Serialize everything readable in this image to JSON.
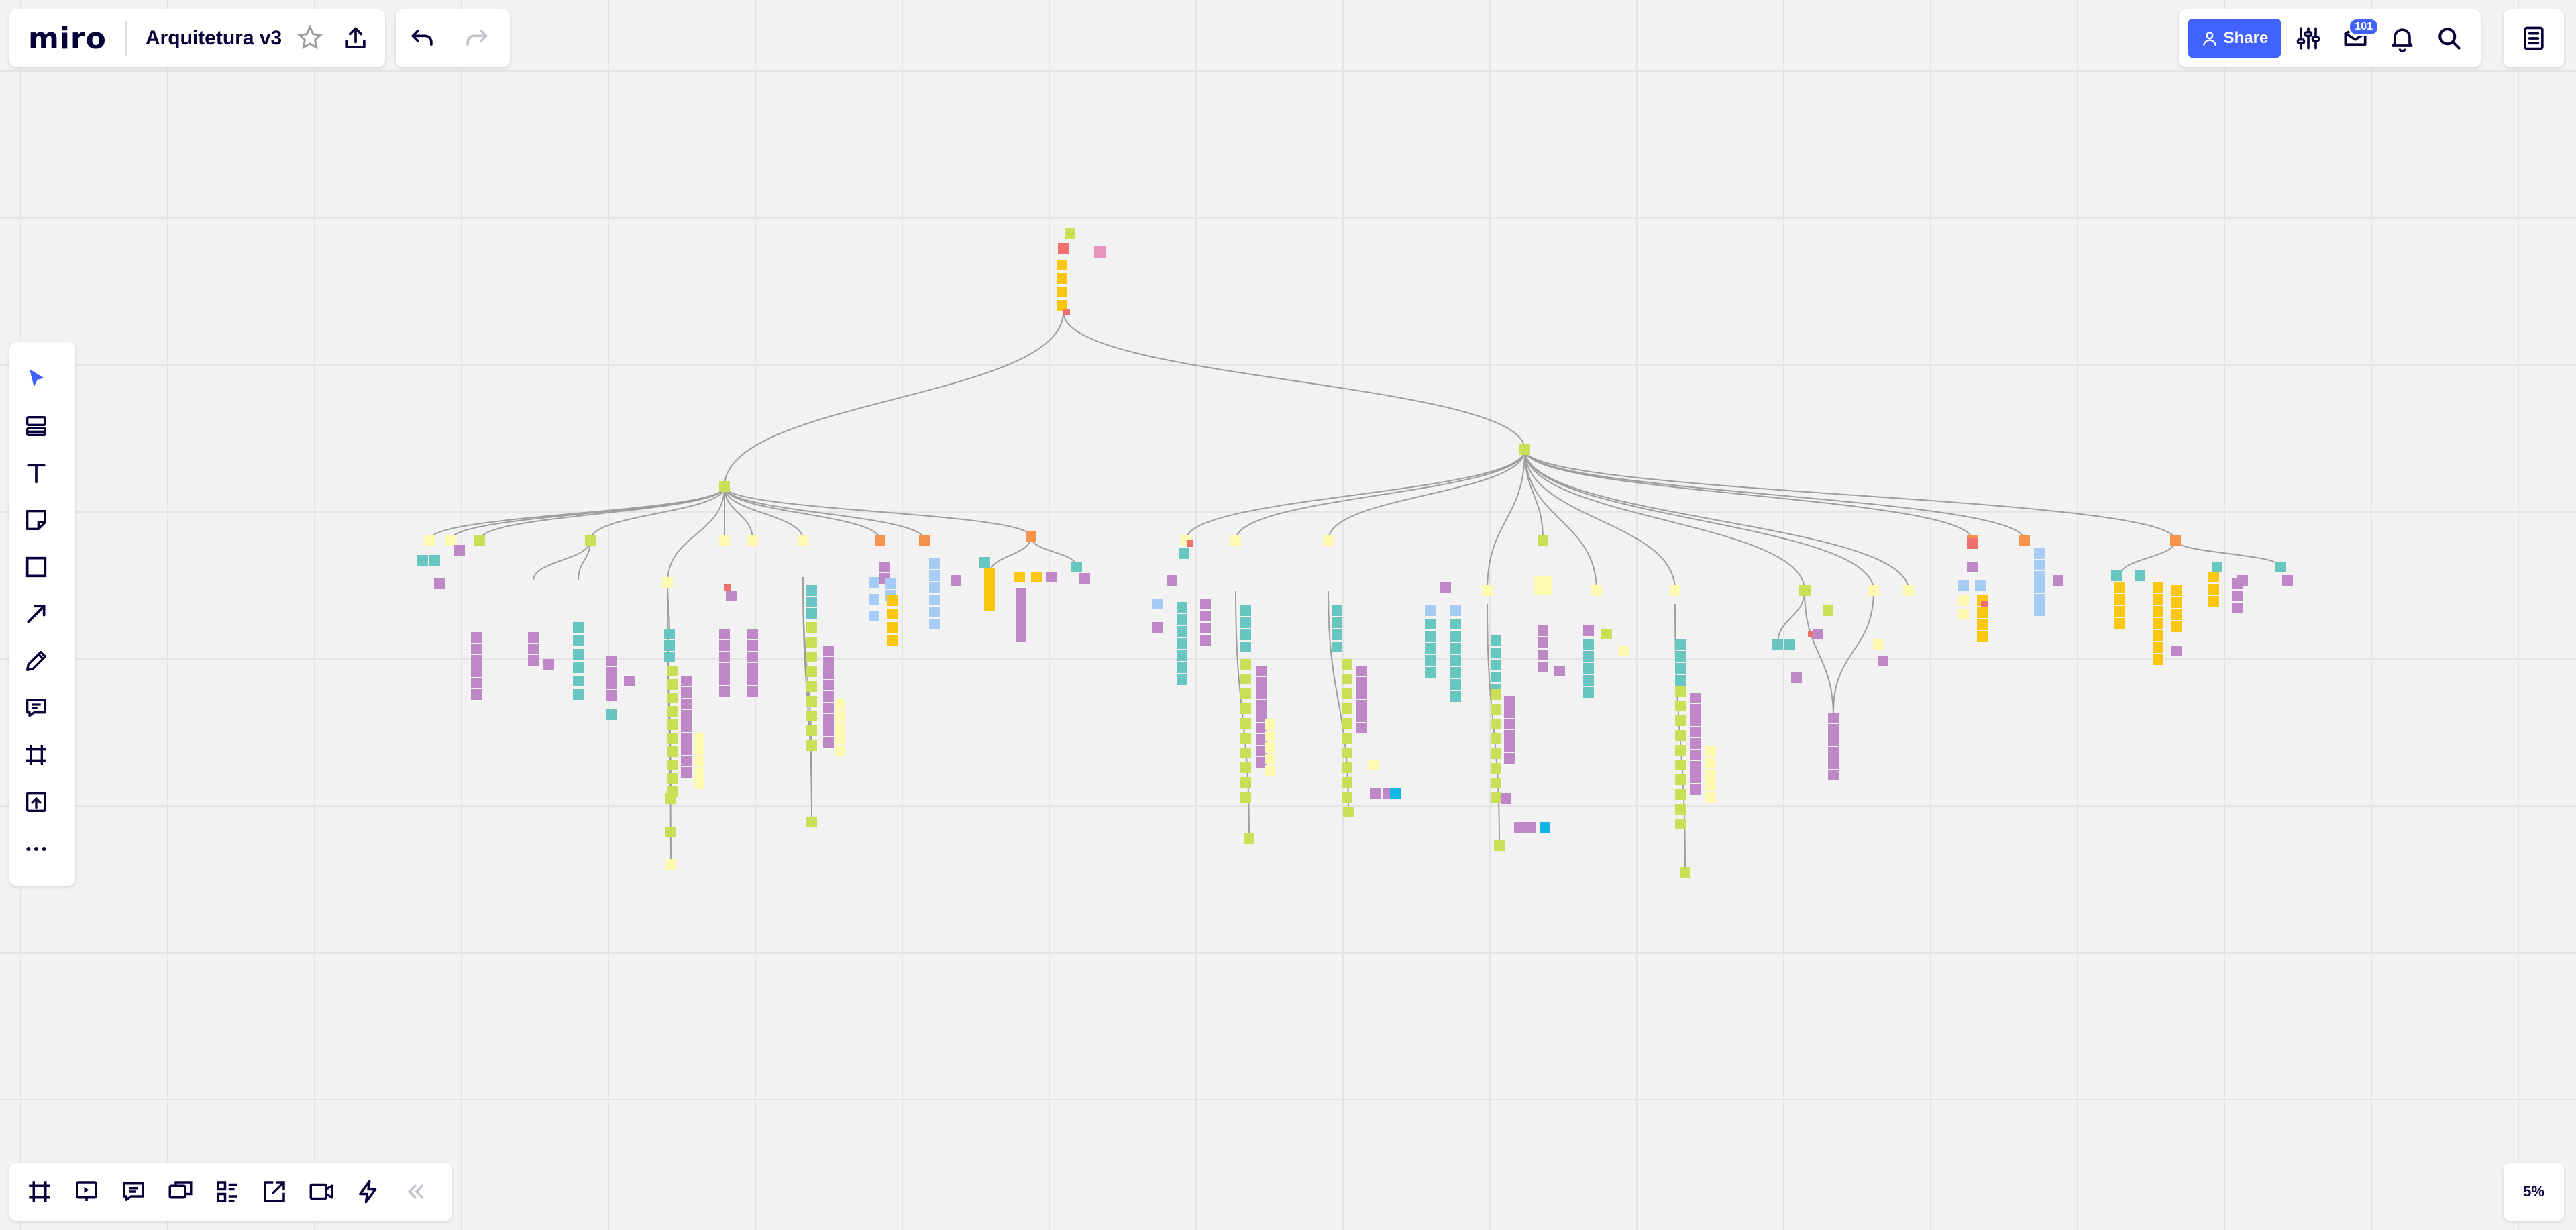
{
  "app": {
    "logo": "miro",
    "board_title": "Arquitetura v3"
  },
  "header": {
    "share_label": "Share",
    "notification_badge": "101"
  },
  "zoom": {
    "level": "5%"
  },
  "icons": {
    "left_toolbar": [
      "cursor-icon",
      "templates-icon",
      "text-icon",
      "sticky-note-icon",
      "shape-icon",
      "arrow-line-icon",
      "pen-icon",
      "comment-icon",
      "frame-icon",
      "upload-icon",
      "more-icon"
    ],
    "bottom_toolbar": [
      "frames-icon",
      "present-icon",
      "notes-icon",
      "cards-icon",
      "kanban-icon",
      "share-screen-icon",
      "video-icon",
      "bolt-icon",
      "collapse-icon"
    ],
    "top_right": [
      "settings-sliders-icon",
      "activity-icon",
      "bell-icon",
      "search-icon",
      "board-menu-icon"
    ]
  },
  "colors": {
    "accent": "#4262ff",
    "sticky_purple": "#be88c7",
    "sticky_teal": "#67c6c0",
    "sticky_yellow": "#fff9b1",
    "sticky_gold": "#fac710",
    "sticky_lime": "#c9df56",
    "sticky_orange": "#f7924a",
    "sticky_blue": "#a6ccf5",
    "sticky_red": "#ef6f6f",
    "sticky_pink": "#ea94bb",
    "sticky_cyan": "#12b6e6",
    "connector": "#9e9e9e"
  }
}
